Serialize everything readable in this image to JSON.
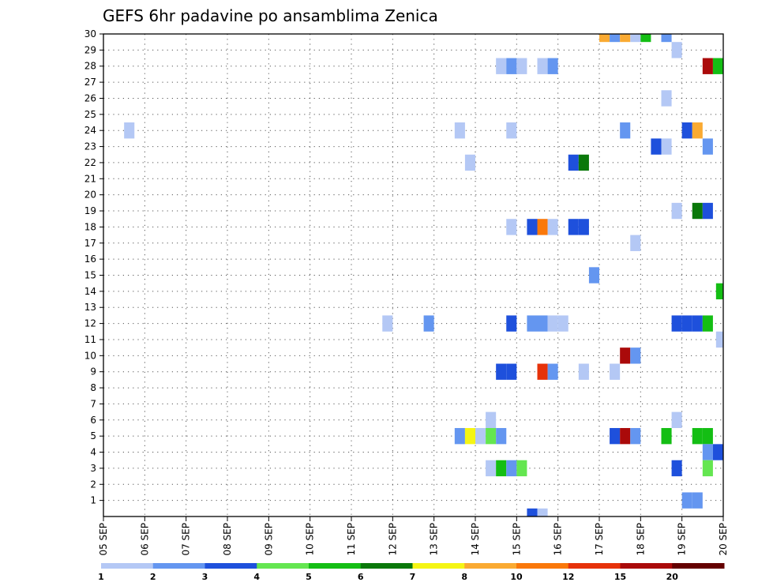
{
  "chart_data": {
    "type": "heatmap",
    "title": "GEFS 6hr padavine po ansamblima Zenica",
    "xlabel": "",
    "ylabel": "",
    "x_unit": "6h steps from 05 SEP 00Z",
    "xlim": [
      0,
      60
    ],
    "ylim": [
      0,
      30
    ],
    "grid": true,
    "x_ticks": [
      {
        "step": 0,
        "label": "05 SEP"
      },
      {
        "step": 4,
        "label": "06 SEP"
      },
      {
        "step": 8,
        "label": "07 SEP"
      },
      {
        "step": 12,
        "label": "08 SEP"
      },
      {
        "step": 16,
        "label": "09 SEP"
      },
      {
        "step": 20,
        "label": "10 SEP"
      },
      {
        "step": 24,
        "label": "11 SEP"
      },
      {
        "step": 28,
        "label": "12 SEP"
      },
      {
        "step": 32,
        "label": "13 SEP"
      },
      {
        "step": 36,
        "label": "14 SEP"
      },
      {
        "step": 40,
        "label": "15 SEP"
      },
      {
        "step": 44,
        "label": "16 SEP"
      },
      {
        "step": 48,
        "label": "17 SEP"
      },
      {
        "step": 52,
        "label": "18 SEP"
      },
      {
        "step": 56,
        "label": "19 SEP"
      },
      {
        "step": 60,
        "label": "20 SEP"
      }
    ],
    "y_ticks": [
      "1",
      "2",
      "3",
      "4",
      "5",
      "6",
      "7",
      "8",
      "9",
      "10",
      "11",
      "12",
      "13",
      "14",
      "15",
      "16",
      "17",
      "18",
      "19",
      "20",
      "21",
      "22",
      "23",
      "24",
      "25",
      "26",
      "27",
      "28",
      "29",
      "30"
    ],
    "colorbar": {
      "labels": [
        "1",
        "2",
        "3",
        "4",
        "5",
        "6",
        "7",
        "8",
        "10",
        "12",
        "15",
        "20"
      ],
      "colors": [
        "#b4c8f5",
        "#6496f0",
        "#1e50dc",
        "#64e650",
        "#14be14",
        "#0a780a",
        "#f5f514",
        "#faaa32",
        "#fa780a",
        "#e6320a",
        "#aa0a0a",
        "#640000"
      ]
    },
    "cells": [
      {
        "m": 30,
        "x": 48.5,
        "c": 7
      },
      {
        "m": 30,
        "x": 49.5,
        "c": 1
      },
      {
        "m": 30,
        "x": 50.5,
        "c": 7
      },
      {
        "m": 30,
        "x": 51.5,
        "c": 0
      },
      {
        "m": 30,
        "x": 52.5,
        "c": 4
      },
      {
        "m": 30,
        "x": 54.5,
        "c": 1
      },
      {
        "m": 29,
        "x": 55.5,
        "c": 0
      },
      {
        "m": 28,
        "x": 38.5,
        "c": 0
      },
      {
        "m": 28,
        "x": 39.5,
        "c": 1
      },
      {
        "m": 28,
        "x": 40.5,
        "c": 0
      },
      {
        "m": 28,
        "x": 42.5,
        "c": 0
      },
      {
        "m": 28,
        "x": 43.5,
        "c": 1
      },
      {
        "m": 28,
        "x": 58.5,
        "c": 10
      },
      {
        "m": 28,
        "x": 59.5,
        "c": 4
      },
      {
        "m": 26,
        "x": 54.5,
        "c": 0
      },
      {
        "m": 24,
        "x": 2.5,
        "c": 0
      },
      {
        "m": 24,
        "x": 34.5,
        "c": 0
      },
      {
        "m": 24,
        "x": 39.5,
        "c": 0
      },
      {
        "m": 24,
        "x": 50.5,
        "c": 1
      },
      {
        "m": 24,
        "x": 56.5,
        "c": 2
      },
      {
        "m": 24,
        "x": 57.5,
        "c": 7
      },
      {
        "m": 23,
        "x": 53.5,
        "c": 2
      },
      {
        "m": 23,
        "x": 54.5,
        "c": 0
      },
      {
        "m": 23,
        "x": 58.5,
        "c": 1
      },
      {
        "m": 22,
        "x": 35.5,
        "c": 0
      },
      {
        "m": 22,
        "x": 45.5,
        "c": 2
      },
      {
        "m": 22,
        "x": 46.5,
        "c": 5
      },
      {
        "m": 19,
        "x": 55.5,
        "c": 0
      },
      {
        "m": 19,
        "x": 57.5,
        "c": 5
      },
      {
        "m": 19,
        "x": 58.5,
        "c": 2
      },
      {
        "m": 18,
        "x": 39.5,
        "c": 0
      },
      {
        "m": 18,
        "x": 41.5,
        "c": 2
      },
      {
        "m": 18,
        "x": 42.5,
        "c": 8
      },
      {
        "m": 18,
        "x": 43.5,
        "c": 0
      },
      {
        "m": 18,
        "x": 45.5,
        "c": 2
      },
      {
        "m": 18,
        "x": 46.5,
        "c": 2
      },
      {
        "m": 17,
        "x": 51.5,
        "c": 0
      },
      {
        "m": 15,
        "x": 47.5,
        "c": 1
      },
      {
        "m": 14,
        "x": 59.8,
        "c": 4
      },
      {
        "m": 12,
        "x": 27.5,
        "c": 0
      },
      {
        "m": 12,
        "x": 31.5,
        "c": 1
      },
      {
        "m": 12,
        "x": 39.5,
        "c": 2
      },
      {
        "m": 12,
        "x": 41.5,
        "c": 1
      },
      {
        "m": 12,
        "x": 42.5,
        "c": 1
      },
      {
        "m": 12,
        "x": 43.5,
        "c": 0
      },
      {
        "m": 12,
        "x": 44.5,
        "c": 0
      },
      {
        "m": 12,
        "x": 55.5,
        "c": 2
      },
      {
        "m": 12,
        "x": 56.5,
        "c": 2
      },
      {
        "m": 12,
        "x": 57.5,
        "c": 2
      },
      {
        "m": 12,
        "x": 58.5,
        "c": 4
      },
      {
        "m": 11,
        "x": 59.8,
        "c": 0
      },
      {
        "m": 10,
        "x": 50.5,
        "c": 10
      },
      {
        "m": 10,
        "x": 51.5,
        "c": 1
      },
      {
        "m": 9,
        "x": 38.5,
        "c": 2
      },
      {
        "m": 9,
        "x": 39.5,
        "c": 2
      },
      {
        "m": 9,
        "x": 42.5,
        "c": 9
      },
      {
        "m": 9,
        "x": 43.5,
        "c": 1
      },
      {
        "m": 9,
        "x": 46.5,
        "c": 0
      },
      {
        "m": 9,
        "x": 49.5,
        "c": 0
      },
      {
        "m": 6,
        "x": 37.5,
        "c": 0
      },
      {
        "m": 6,
        "x": 55.5,
        "c": 0
      },
      {
        "m": 5,
        "x": 34.5,
        "c": 1
      },
      {
        "m": 5,
        "x": 35.5,
        "c": 6
      },
      {
        "m": 5,
        "x": 36.5,
        "c": 0
      },
      {
        "m": 5,
        "x": 37.5,
        "c": 3
      },
      {
        "m": 5,
        "x": 38.5,
        "c": 1
      },
      {
        "m": 5,
        "x": 49.5,
        "c": 2
      },
      {
        "m": 5,
        "x": 50.5,
        "c": 10
      },
      {
        "m": 5,
        "x": 51.5,
        "c": 1
      },
      {
        "m": 5,
        "x": 54.5,
        "c": 4
      },
      {
        "m": 5,
        "x": 57.5,
        "c": 4
      },
      {
        "m": 5,
        "x": 58.5,
        "c": 4
      },
      {
        "m": 4,
        "x": 58.5,
        "c": 1
      },
      {
        "m": 4,
        "x": 59.5,
        "c": 2
      },
      {
        "m": 3,
        "x": 37.5,
        "c": 0
      },
      {
        "m": 3,
        "x": 38.5,
        "c": 4
      },
      {
        "m": 3,
        "x": 39.5,
        "c": 1
      },
      {
        "m": 3,
        "x": 40.5,
        "c": 3
      },
      {
        "m": 3,
        "x": 55.5,
        "c": 2
      },
      {
        "m": 3,
        "x": 58.5,
        "c": 3
      },
      {
        "m": 1,
        "x": 56.5,
        "c": 1
      },
      {
        "m": 1,
        "x": 57.5,
        "c": 1
      },
      {
        "m": 0,
        "x": 41.5,
        "c": 2
      },
      {
        "m": 0,
        "x": 42.5,
        "c": 0
      }
    ]
  }
}
